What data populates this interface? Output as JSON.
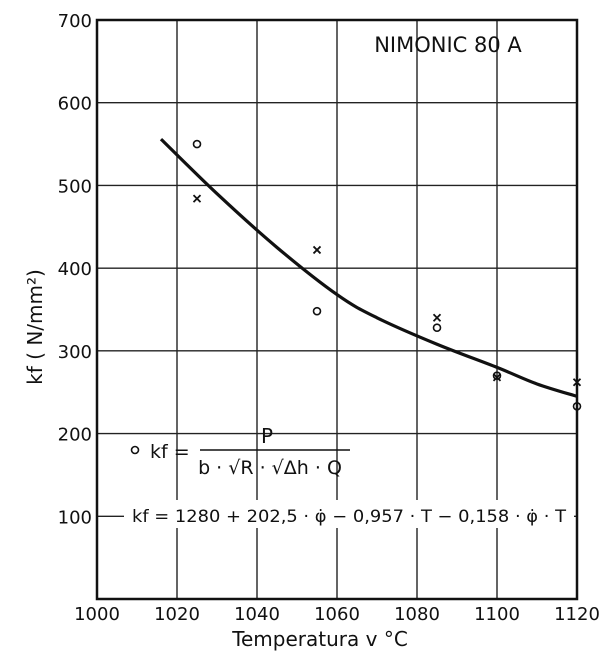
{
  "chart_data": {
    "type": "scatter",
    "title": "NIMONIC 80 A",
    "xlabel": "Temperatura v °C",
    "ylabel": "kf ( N/mm²)",
    "xlim": [
      1000,
      1120
    ],
    "ylim": [
      0,
      700
    ],
    "x_ticks": [
      1000,
      1020,
      1040,
      1060,
      1080,
      1100,
      1120
    ],
    "y_ticks": [
      100,
      200,
      300,
      400,
      500,
      600,
      700
    ],
    "grid": true,
    "series": [
      {
        "marker": "o",
        "points": [
          [
            1025,
            550
          ],
          [
            1055,
            348
          ],
          [
            1085,
            328
          ],
          [
            1100,
            270
          ],
          [
            1120,
            233
          ]
        ]
      },
      {
        "marker": "x",
        "points": [
          [
            1025,
            484
          ],
          [
            1055,
            422
          ],
          [
            1085,
            340
          ],
          [
            1100,
            268
          ],
          [
            1120,
            262
          ]
        ]
      },
      {
        "marker": "line",
        "points": [
          [
            1016,
            556
          ],
          [
            1030,
            490
          ],
          [
            1045,
            425
          ],
          [
            1060,
            368
          ],
          [
            1070,
            340
          ],
          [
            1085,
            308
          ],
          [
            1100,
            280
          ],
          [
            1110,
            260
          ],
          [
            1120,
            245
          ]
        ]
      }
    ],
    "annotations": {
      "formula1": {
        "marker": "o",
        "lhs": "kf =",
        "numerator": "P",
        "denominator": "b · √R · √Δh · Q"
      },
      "formula2": {
        "marker": "×",
        "text": "kf = 1280 + 202,5 · φ̇ − 0,957 · T − 0,158 · φ̇ · T"
      }
    }
  }
}
